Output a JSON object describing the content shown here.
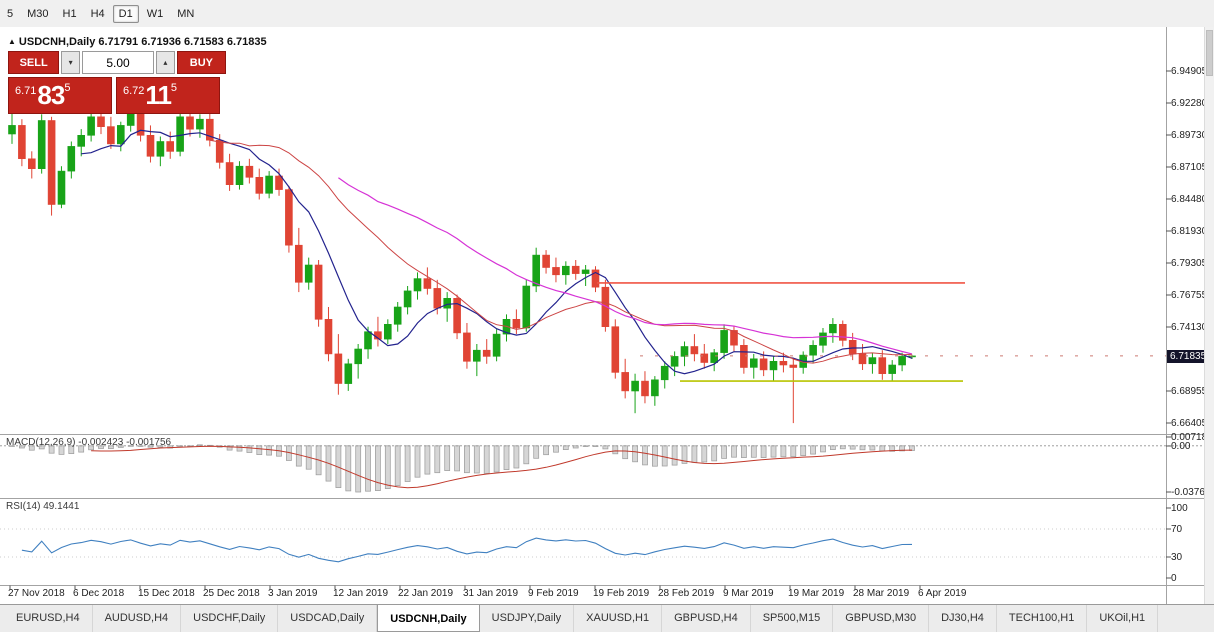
{
  "toolbar": {
    "timeframes": [
      "5",
      "M30",
      "H1",
      "H4",
      "D1",
      "W1",
      "MN"
    ],
    "active": "D1"
  },
  "icons": {
    "collapse": "▲",
    "spinner_down": "▾",
    "spinner_up": "▴"
  },
  "chart": {
    "title": "USDCNH,Daily 6.71791 6.71936 6.71583 6.71835",
    "current_price": "6.71835",
    "price_axis": [
      "6.94905",
      "6.92280",
      "6.89730",
      "6.87105",
      "6.84480",
      "6.81930",
      "6.79305",
      "6.76755",
      "6.74130",
      "",
      "6.68955",
      "6.66405"
    ],
    "dates": [
      "27 Nov 2018",
      "6 Dec 2018",
      "15 Dec 2018",
      "25 Dec 2018",
      "3 Jan 2019",
      "12 Jan 2019",
      "22 Jan 2019",
      "31 Jan 2019",
      "9 Feb 2019",
      "19 Feb 2019",
      "28 Feb 2019",
      "9 Mar 2019",
      "19 Mar 2019",
      "28 Mar 2019",
      "6 Apr 2019"
    ],
    "objects": {
      "resistance_price": 6.7775,
      "support_price": 6.698
    },
    "candles": [
      [
        6.898,
        6.915,
        6.89,
        6.905
      ],
      [
        6.905,
        6.91,
        6.872,
        6.878
      ],
      [
        6.878,
        6.884,
        6.862,
        6.87
      ],
      [
        6.87,
        6.914,
        6.866,
        6.909
      ],
      [
        6.909,
        6.912,
        6.832,
        6.841
      ],
      [
        6.841,
        6.872,
        6.838,
        6.868
      ],
      [
        6.868,
        6.892,
        6.862,
        6.888
      ],
      [
        6.888,
        6.902,
        6.88,
        6.897
      ],
      [
        6.897,
        6.916,
        6.892,
        6.912
      ],
      [
        6.912,
        6.918,
        6.898,
        6.904
      ],
      [
        6.904,
        6.912,
        6.886,
        6.89
      ],
      [
        6.89,
        6.908,
        6.884,
        6.905
      ],
      [
        6.905,
        6.92,
        6.9,
        6.915
      ],
      [
        6.915,
        6.922,
        6.892,
        6.897
      ],
      [
        6.897,
        6.905,
        6.875,
        6.88
      ],
      [
        6.88,
        6.896,
        6.872,
        6.892
      ],
      [
        6.892,
        6.9,
        6.878,
        6.884
      ],
      [
        6.884,
        6.916,
        6.88,
        6.912
      ],
      [
        6.912,
        6.918,
        6.896,
        6.902
      ],
      [
        6.902,
        6.914,
        6.895,
        6.91
      ],
      [
        6.91,
        6.915,
        6.888,
        6.893
      ],
      [
        6.893,
        6.898,
        6.87,
        6.875
      ],
      [
        6.875,
        6.882,
        6.852,
        6.857
      ],
      [
        6.857,
        6.876,
        6.853,
        6.872
      ],
      [
        6.872,
        6.878,
        6.858,
        6.863
      ],
      [
        6.863,
        6.87,
        6.845,
        6.85
      ],
      [
        6.85,
        6.868,
        6.846,
        6.864
      ],
      [
        6.864,
        6.87,
        6.848,
        6.853
      ],
      [
        6.853,
        6.856,
        6.802,
        6.808
      ],
      [
        6.808,
        6.822,
        6.77,
        6.778
      ],
      [
        6.778,
        6.798,
        6.772,
        6.792
      ],
      [
        6.792,
        6.796,
        6.742,
        6.748
      ],
      [
        6.748,
        6.758,
        6.714,
        6.72
      ],
      [
        6.72,
        6.736,
        6.687,
        6.696
      ],
      [
        6.696,
        6.716,
        6.69,
        6.712
      ],
      [
        6.712,
        6.728,
        6.7,
        6.724
      ],
      [
        6.724,
        6.742,
        6.716,
        6.738
      ],
      [
        6.738,
        6.75,
        6.726,
        6.732
      ],
      [
        6.732,
        6.748,
        6.728,
        6.744
      ],
      [
        6.744,
        6.762,
        6.738,
        6.758
      ],
      [
        6.758,
        6.775,
        6.752,
        6.771
      ],
      [
        6.771,
        6.786,
        6.764,
        6.781
      ],
      [
        6.781,
        6.79,
        6.768,
        6.773
      ],
      [
        6.773,
        6.78,
        6.752,
        6.757
      ],
      [
        6.757,
        6.77,
        6.746,
        6.765
      ],
      [
        6.765,
        6.768,
        6.732,
        6.737
      ],
      [
        6.737,
        6.745,
        6.708,
        6.714
      ],
      [
        6.714,
        6.728,
        6.702,
        6.723
      ],
      [
        6.723,
        6.732,
        6.712,
        6.718
      ],
      [
        6.718,
        6.74,
        6.714,
        6.736
      ],
      [
        6.736,
        6.752,
        6.73,
        6.748
      ],
      [
        6.748,
        6.756,
        6.736,
        6.741
      ],
      [
        6.741,
        6.78,
        6.738,
        6.775
      ],
      [
        6.775,
        6.806,
        6.77,
        6.8
      ],
      [
        6.8,
        6.804,
        6.785,
        6.79
      ],
      [
        6.79,
        6.798,
        6.778,
        6.784
      ],
      [
        6.784,
        6.795,
        6.776,
        6.791
      ],
      [
        6.791,
        6.796,
        6.78,
        6.785
      ],
      [
        6.785,
        6.792,
        6.775,
        6.788
      ],
      [
        6.788,
        6.791,
        6.77,
        6.774
      ],
      [
        6.774,
        6.78,
        6.738,
        6.742
      ],
      [
        6.742,
        6.748,
        6.7,
        6.705
      ],
      [
        6.705,
        6.716,
        6.684,
        6.69
      ],
      [
        6.69,
        6.704,
        6.672,
        6.698
      ],
      [
        6.698,
        6.706,
        6.68,
        6.686
      ],
      [
        6.686,
        6.702,
        6.678,
        6.699
      ],
      [
        6.699,
        6.714,
        6.692,
        6.71
      ],
      [
        6.71,
        6.722,
        6.702,
        6.718
      ],
      [
        6.718,
        6.73,
        6.71,
        6.726
      ],
      [
        6.726,
        6.736,
        6.714,
        6.72
      ],
      [
        6.72,
        6.728,
        6.708,
        6.713
      ],
      [
        6.713,
        6.724,
        6.706,
        6.721
      ],
      [
        6.721,
        6.744,
        6.716,
        6.739
      ],
      [
        6.739,
        6.743,
        6.722,
        6.727
      ],
      [
        6.727,
        6.732,
        6.704,
        6.709
      ],
      [
        6.709,
        6.72,
        6.7,
        6.716
      ],
      [
        6.716,
        6.722,
        6.702,
        6.707
      ],
      [
        6.707,
        6.718,
        6.698,
        6.714
      ],
      [
        6.714,
        6.721,
        6.705,
        6.711
      ],
      [
        6.711,
        6.717,
        6.664,
        6.709
      ],
      [
        6.709,
        6.722,
        6.704,
        6.719
      ],
      [
        6.719,
        6.731,
        6.713,
        6.727
      ],
      [
        6.727,
        6.741,
        6.721,
        6.737
      ],
      [
        6.737,
        6.749,
        6.729,
        6.744
      ],
      [
        6.744,
        6.747,
        6.726,
        6.731
      ],
      [
        6.731,
        6.737,
        6.715,
        6.72
      ],
      [
        6.72,
        6.728,
        6.707,
        6.712
      ],
      [
        6.712,
        6.721,
        6.704,
        6.717
      ],
      [
        6.717,
        6.723,
        6.699,
        6.704
      ],
      [
        6.704,
        6.715,
        6.698,
        6.711
      ],
      [
        6.711,
        6.721,
        6.706,
        6.718
      ],
      [
        6.71791,
        6.71936,
        6.71583,
        6.71835
      ]
    ]
  },
  "trade": {
    "sell_label": "SELL",
    "buy_label": "BUY",
    "volume": "5.00",
    "sell_price": {
      "base": "6.71",
      "big": "83",
      "sup": "5"
    },
    "buy_price": {
      "base": "6.72",
      "big": "11",
      "sup": "5"
    }
  },
  "macd": {
    "label": "MACD(12,26,9) -0.002423 -0.001756",
    "axis": [
      "0.007186",
      "0.00",
      "-0.037688"
    ]
  },
  "rsi": {
    "label": "RSI(14) 49.1441",
    "axis": [
      "100",
      "70",
      "30",
      "0"
    ]
  },
  "tabs": {
    "items": [
      "EURUSD,H4",
      "AUDUSD,H4",
      "USDCHF,Daily",
      "USDCAD,Daily",
      "USDCNH,Daily",
      "USDJPY,Daily",
      "XAUUSD,H1",
      "GBPUSD,H4",
      "SP500,M15",
      "GBPUSD,M30",
      "DJ30,H4",
      "TECH100,H1",
      "UKOil,H1"
    ],
    "active_index": 4
  },
  "colors": {
    "bull": "#18a318",
    "bear": "#e04434",
    "ma_fast": "#23238e",
    "ma_mid": "#cc4444",
    "ma_slow": "#d633d6",
    "resistance": "#f05545",
    "support": "#b8c400",
    "rsi": "#4080c0",
    "macd_signal": "#c0392b",
    "macd_bar": "#d6d6d6",
    "macd_bar_border": "#9e9e9e"
  }
}
